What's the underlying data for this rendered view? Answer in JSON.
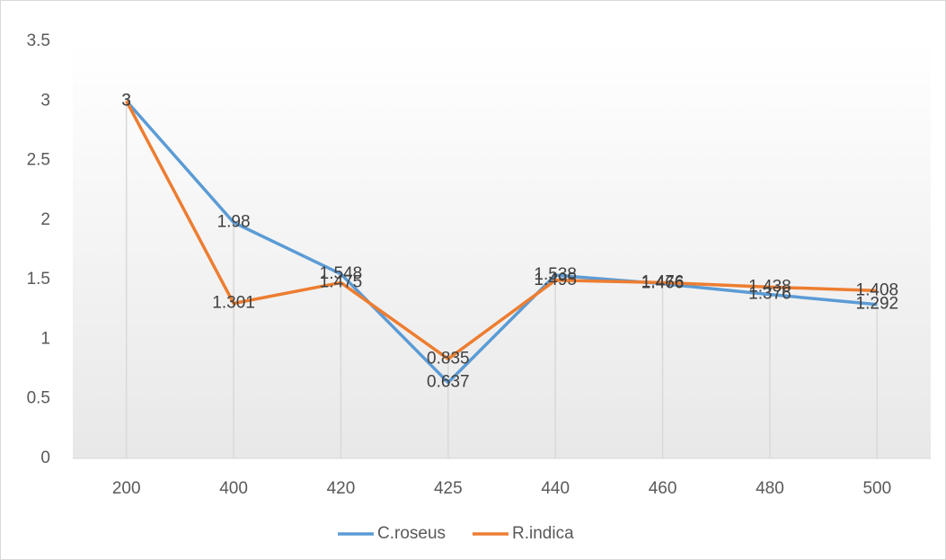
{
  "chart_data": {
    "type": "line",
    "categories": [
      "200",
      "400",
      "420",
      "425",
      "440",
      "460",
      "480",
      "500"
    ],
    "series": [
      {
        "name": "C.roseus",
        "color": "#5b9bd5",
        "values": [
          3,
          1.98,
          1.548,
          0.637,
          1.538,
          1.466,
          1.376,
          1.292
        ]
      },
      {
        "name": "R.indica",
        "color": "#ed7d31",
        "values": [
          3,
          1.301,
          1.475,
          0.835,
          1.495,
          1.476,
          1.438,
          1.408
        ]
      }
    ],
    "ylim": [
      0,
      3.5
    ],
    "yticks": [
      0,
      0.5,
      1,
      1.5,
      2,
      2.5,
      3,
      3.5
    ],
    "drop_lines": true,
    "legend": "bottom"
  }
}
